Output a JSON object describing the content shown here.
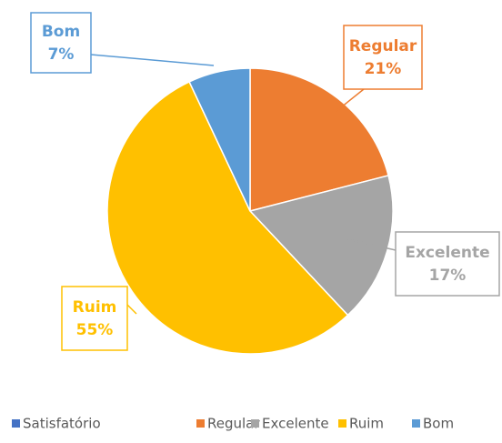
{
  "chart_data": {
    "type": "pie",
    "categories": [
      "Satisfatório",
      "Regular",
      "Excelente",
      "Ruim",
      "Bom"
    ],
    "values": [
      0,
      21,
      17,
      55,
      7
    ],
    "value_labels": [
      null,
      "21%",
      "17%",
      "55%",
      "7%"
    ],
    "colors": [
      "#4472c4",
      "#ed7d31",
      "#a5a5a5",
      "#ffc000",
      "#5b9bd5"
    ],
    "legend": "bottom"
  }
}
